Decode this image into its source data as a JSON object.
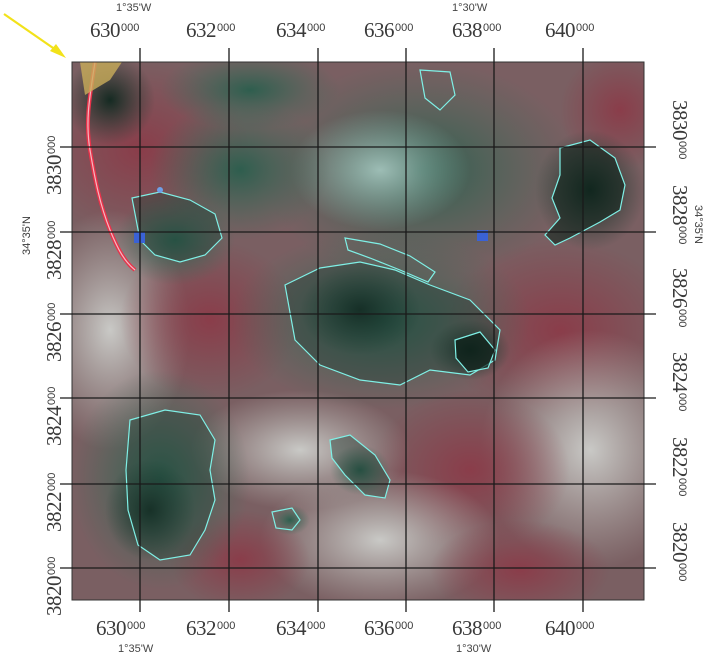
{
  "map": {
    "title": "",
    "arrow_color": "#f2e21a",
    "grid_color": "#1a1a1a",
    "polygon_outline_color": "#7ff0e6",
    "boundary_color": "#e8324a",
    "point_color": "#3a62d6"
  },
  "top_lon_labels": [
    {
      "lon": "1°35'W"
    },
    {
      "lon": "1°30'W"
    }
  ],
  "bottom_lon_labels": [
    {
      "lon": "1°35'W"
    },
    {
      "lon": "1°30'W"
    }
  ],
  "easting_labels": [
    {
      "main": "630",
      "sub": "000"
    },
    {
      "main": "632",
      "sub": "000"
    },
    {
      "main": "634",
      "sub": "000"
    },
    {
      "main": "636",
      "sub": "000"
    },
    {
      "main": "638",
      "sub": "000"
    },
    {
      "main": "640",
      "sub": "000"
    }
  ],
  "northing_labels": [
    {
      "main": "3830",
      "sub": "000"
    },
    {
      "main": "3828",
      "sub": "000"
    },
    {
      "main": "3826",
      "sub": "000"
    },
    {
      "main": "3824",
      "sub": "000"
    },
    {
      "main": "3822",
      "sub": "000"
    },
    {
      "main": "3820",
      "sub": "000"
    }
  ],
  "lat_labels": {
    "left": "34°35'N",
    "right": "34°35'N"
  }
}
